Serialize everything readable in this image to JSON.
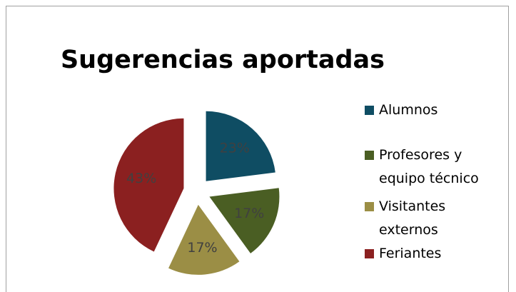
{
  "chart_data": {
    "type": "pie",
    "title": "Sugerencias aportadas",
    "categories": [
      "Alumnos",
      "Profesores y equipo técnico",
      "Visitantes externos",
      "Feriantes"
    ],
    "values": [
      23,
      17,
      17,
      43
    ],
    "value_labels": [
      "23%",
      "17%",
      "17%",
      "43%"
    ],
    "colors": [
      "#0f4d63",
      "#4a5e23",
      "#9b8e45",
      "#8b2020"
    ],
    "legend": "right"
  }
}
